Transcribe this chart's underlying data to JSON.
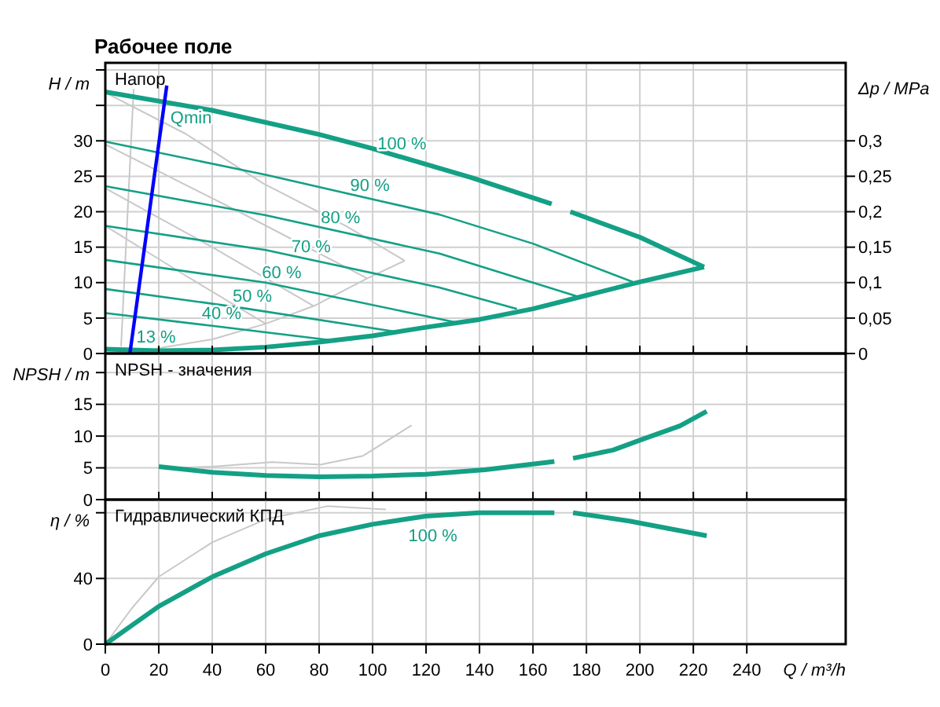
{
  "chart_data": [
    {
      "type": "line",
      "title": "Рабочее поле",
      "ylabel": "H / m",
      "y2label": "Δp / MPa",
      "grid": true,
      "tick_labels": "y",
      "xlim": [
        0,
        277
      ],
      "xticks": [
        0,
        20,
        40,
        60,
        80,
        100,
        120,
        140,
        160,
        180,
        200,
        220,
        240
      ],
      "ylim": [
        0,
        41
      ],
      "yticks": [
        0,
        5,
        10,
        15,
        20,
        25,
        30,
        {
          "value": 35,
          "label": null
        },
        {
          "value": 40,
          "label": null
        }
      ],
      "y2lim": [
        0,
        0.41
      ],
      "y2ticks": [
        0,
        {
          "value": 0.05,
          "label": "0,05"
        },
        {
          "value": 0.1,
          "label": "0,1"
        },
        {
          "value": 0.15,
          "label": "0,15"
        },
        {
          "value": 0.2,
          "label": "0,2"
        },
        {
          "value": 0.25,
          "label": "0,25"
        },
        {
          "value": 0.3,
          "label": "0,3"
        }
      ],
      "annotations": [
        "Напор",
        {
          "text": "Qmin",
          "x": 22,
          "y": 35.5
        },
        {
          "text": "100 %",
          "x": 111,
          "y": 27.7
        },
        {
          "text": "90 %",
          "x": 99,
          "y": 21.8
        },
        {
          "text": "80 %",
          "x": 88,
          "y": 17.2
        },
        {
          "text": "70 %",
          "x": 77,
          "y": 13.2
        },
        {
          "text": "60 %",
          "x": 66,
          "y": 9.5
        },
        {
          "text": "50 %",
          "x": 55,
          "y": 6.2
        },
        {
          "text": "40 %",
          "x": 43.5,
          "y": 3.7
        },
        {
          "text": "13 %",
          "x": 19,
          "y": 0.4
        }
      ],
      "series": [
        {
          "color": "#c8c8c8",
          "x": [
            0,
            30,
            59,
            90,
            112
          ],
          "values": [
            36.8,
            31,
            24,
            18,
            13.1
          ]
        },
        {
          "color": "#c8c8c8",
          "x": [
            0,
            50,
            98
          ],
          "values": [
            29.5,
            20,
            10.6
          ]
        },
        {
          "color": "#c8c8c8",
          "x": [
            0,
            40,
            78
          ],
          "values": [
            23.3,
            15,
            6.7
          ]
        },
        {
          "color": "#c8c8c8",
          "x": [
            0,
            30,
            60
          ],
          "values": [
            18,
            11,
            4.2
          ]
        },
        {
          "color": "#c8c8c8",
          "x": [
            19,
            40,
            60,
            78,
            98,
            112
          ],
          "values": [
            0.7,
            2,
            4.2,
            6.7,
            10.6,
            13.1
          ]
        },
        {
          "color": "#c8c8c8",
          "x": [
            10.6,
            5.9
          ],
          "values": [
            37.3,
            1
          ]
        },
        {
          "color": "#14a085",
          "x": [
            0,
            60,
            125,
            160,
            198
          ],
          "values": [
            29.9,
            25.2,
            19.6,
            15.5,
            10
          ]
        },
        {
          "color": "#14a085",
          "x": [
            0,
            60,
            125,
            177
          ],
          "values": [
            23.6,
            19.5,
            14.1,
            8
          ]
        },
        {
          "color": "#14a085",
          "x": [
            0,
            60,
            125,
            154
          ],
          "values": [
            18,
            14.6,
            9.3,
            6.3
          ]
        },
        {
          "color": "#14a085",
          "x": [
            0,
            60,
            131
          ],
          "values": [
            13.2,
            10,
            4.4
          ]
        },
        {
          "color": "#14a085",
          "x": [
            0,
            50,
            110
          ],
          "values": [
            9.1,
            6.5,
            3
          ]
        },
        {
          "color": "#14a085",
          "x": [
            0,
            40,
            86
          ],
          "values": [
            5.7,
            3.9,
            1.8
          ]
        },
        {
          "color": "#14a085",
          "x": [
            0,
            40,
            80,
            100,
            137,
            167,
            170,
            174,
            200,
            224
          ],
          "values": [
            36.9,
            34.3,
            30.9,
            28.9,
            24.8,
            21.1,
            null,
            20,
            16.4,
            12.2
          ]
        },
        {
          "color": "#14a085",
          "x": [
            0,
            20,
            40,
            60,
            80,
            100,
            120,
            140,
            160,
            180,
            200,
            224
          ],
          "values": [
            0.6,
            0.4,
            0.5,
            0.9,
            1.6,
            2.5,
            3.7,
            4.8,
            6.3,
            8.2,
            10.1,
            12.2
          ]
        },
        {
          "color": "#0000ff",
          "x": [
            9.2,
            23
          ],
          "values": [
            0,
            37.8
          ]
        }
      ]
    },
    {
      "type": "line",
      "ylabel": "NPSH / m",
      "grid": true,
      "tick_labels": "y",
      "xlim": [
        0,
        277
      ],
      "xticks": [
        0,
        20,
        40,
        60,
        80,
        100,
        120,
        140,
        160,
        180,
        200,
        220,
        240
      ],
      "ylim": [
        0,
        23
      ],
      "yticks": [
        0,
        5,
        10,
        15,
        {
          "value": 20,
          "label": null
        }
      ],
      "annotations": [
        "NPSH - значения"
      ],
      "series": [
        {
          "color": "#c8c8c8",
          "x": [
            25,
            40,
            62.5,
            80.5,
            96.5,
            114.6
          ],
          "values": [
            5,
            5.2,
            5.9,
            5.5,
            6.9,
            11.7
          ]
        },
        {
          "color": "#14a085",
          "x": [
            20,
            40,
            60,
            80,
            100,
            120,
            142,
            168,
            170,
            175,
            190,
            201,
            215,
            225
          ],
          "values": [
            5.2,
            4.3,
            3.8,
            3.6,
            3.7,
            4,
            4.7,
            6,
            null,
            6.5,
            7.8,
            9.5,
            11.6,
            13.9
          ]
        }
      ]
    },
    {
      "type": "line",
      "ylabel": "η / %",
      "xlabel": "Q / m³/h",
      "grid": true,
      "xlim": [
        0,
        277
      ],
      "xticks": [
        0,
        20,
        40,
        60,
        80,
        100,
        120,
        140,
        160,
        180,
        200,
        220,
        240
      ],
      "ylim": [
        0,
        88
      ],
      "yticks": [
        0,
        40,
        {
          "value": 80,
          "label": null
        }
      ],
      "annotations": [
        "Гидравлический КПД",
        {
          "text": "100 %",
          "x": 111,
          "y": 76
        }
      ],
      "series": [
        {
          "color": "#c8c8c8",
          "x": [
            0,
            10,
            20,
            40,
            60,
            83,
            105
          ],
          "values": [
            0,
            22,
            41,
            62,
            76,
            84,
            82
          ]
        },
        {
          "color": "#14a085",
          "x": [
            0,
            20,
            40,
            60,
            80,
            100,
            120,
            140,
            155,
            168,
            170,
            175,
            196,
            225
          ],
          "values": [
            0,
            23,
            41,
            55,
            66,
            73,
            78,
            80,
            80,
            80,
            null,
            80,
            75,
            66
          ]
        }
      ]
    }
  ]
}
